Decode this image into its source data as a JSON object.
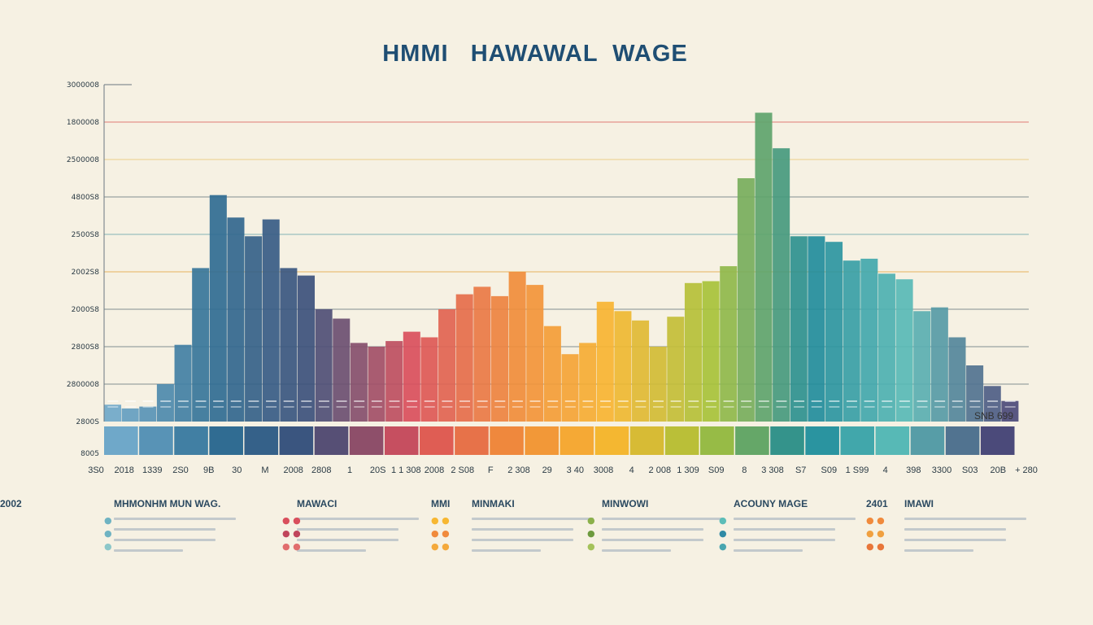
{
  "chart_data": {
    "type": "bar",
    "title": "HMMI   HAWAWAL  WAGE",
    "xlabel": "",
    "ylabel": "",
    "ylim": [
      0,
      9
    ],
    "y_tick_labels": [
      "8005",
      "2800S",
      "2800008",
      "2800S8",
      "2000S8",
      "2002S8",
      "2500S8",
      "4800S8",
      "2500008",
      "1800008",
      "3000008"
    ],
    "x_tick_labels": [
      "3S0",
      "2018",
      "1339",
      "2S0",
      "9B",
      "30",
      "M",
      "2008",
      "2808",
      "1",
      "20S",
      "1 1 308",
      "2008",
      "2 S08",
      "F",
      "2 308",
      "29",
      "3 40",
      "3008",
      "4",
      "2 008",
      "1 309",
      "S09",
      "8",
      "3 308",
      "S7",
      "S09",
      "1 S99",
      "4",
      "398",
      "3300",
      "S03",
      "20B",
      "+ 280"
    ],
    "right_annotation": "SNB 699",
    "colors": [
      "#6fa8c9",
      "#2f6f94",
      "#3d4f7a",
      "#d94f5c",
      "#f08a3c",
      "#f7b731",
      "#a7c23a",
      "#1e8a9a",
      "#5cbdb8",
      "#4b4a7a"
    ],
    "values": [
      0.45,
      0.35,
      0.4,
      1.0,
      2.05,
      4.1,
      6.05,
      5.45,
      4.95,
      5.4,
      4.1,
      3.9,
      3.0,
      2.75,
      2.1,
      2.0,
      2.15,
      2.4,
      2.25,
      3.0,
      3.4,
      3.6,
      3.35,
      4.0,
      3.65,
      2.55,
      1.8,
      2.1,
      3.2,
      2.95,
      2.7,
      2.0,
      2.8,
      3.7,
      3.75,
      4.15,
      6.5,
      8.25,
      7.3,
      4.95,
      4.95,
      4.8,
      4.3,
      4.35,
      3.95,
      3.8,
      2.95,
      3.05,
      2.25,
      1.5,
      0.95,
      0.55
    ]
  },
  "legend": [
    {
      "title": "MHMONHM MUN WAG.",
      "num": ""
    },
    {
      "title": "MAWACI",
      "num": "2002"
    },
    {
      "title": "MINMAKI",
      "num": "MMI"
    },
    {
      "title": "MINWOWI",
      "num": ""
    },
    {
      "title": "ACOUNY MAGE",
      "num": ""
    },
    {
      "title": "IMAWI",
      "num": "2401"
    }
  ]
}
